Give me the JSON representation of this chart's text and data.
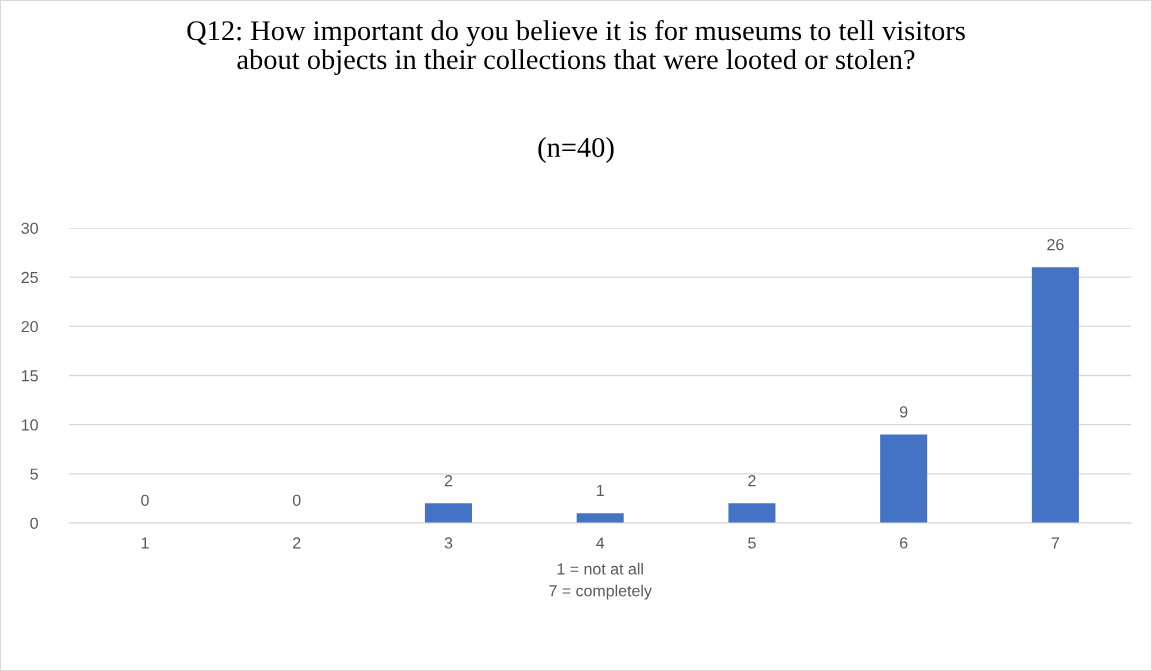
{
  "chart_data": {
    "type": "bar",
    "title": "Q12: How important do you believe it is for museums to tell visitors about objects in their collections that were looted or stolen?",
    "subtitle": "(n=40)",
    "xlabel": "1 = not at all\n7 = completely",
    "categories": [
      "1",
      "2",
      "3",
      "4",
      "5",
      "6",
      "7"
    ],
    "values": [
      0,
      0,
      2,
      1,
      2,
      9,
      26
    ],
    "color": "#4472c4",
    "ylim": [
      0,
      30
    ],
    "yticks": [
      0,
      5,
      10,
      15,
      20,
      25,
      30
    ],
    "grid": "y",
    "data_labels": true
  }
}
